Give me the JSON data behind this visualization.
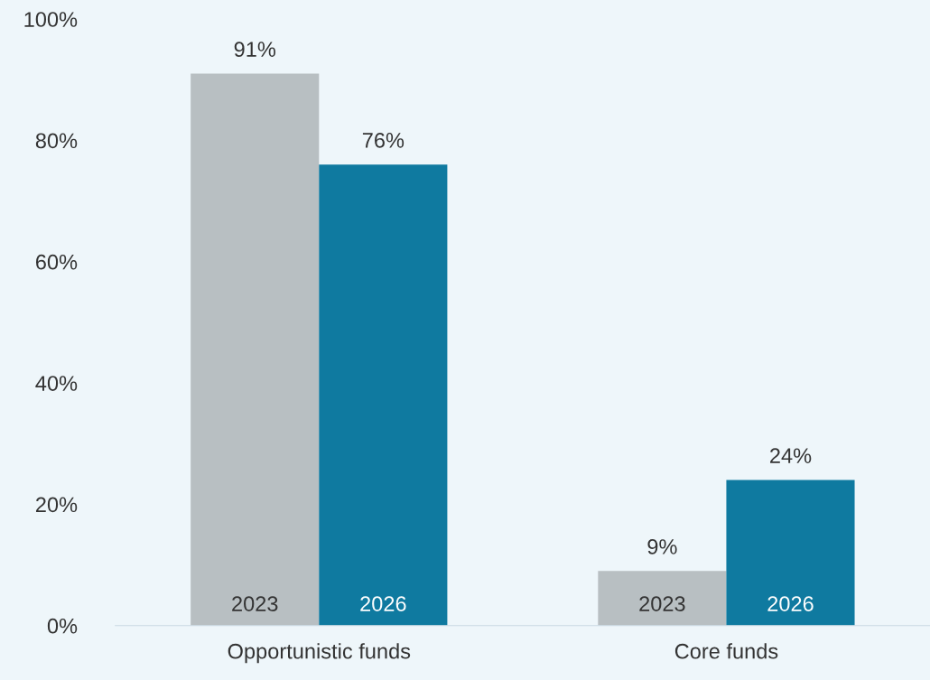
{
  "chart_data": {
    "type": "bar",
    "categories": [
      "Opportunistic funds",
      "Core funds"
    ],
    "series": [
      {
        "name": "2023",
        "color": "#b8bfc2",
        "values": [
          91,
          9
        ],
        "value_labels": [
          "91%",
          "9%"
        ]
      },
      {
        "name": "2026",
        "color": "#0f7aa0",
        "values": [
          76,
          24
        ],
        "value_labels": [
          "76%",
          "24%"
        ]
      }
    ],
    "ylim": [
      0,
      100
    ],
    "yticks": [
      {
        "value": 0,
        "label": "0%"
      },
      {
        "value": 20,
        "label": "20%"
      },
      {
        "value": 40,
        "label": "40%"
      },
      {
        "value": 60,
        "label": "60%"
      },
      {
        "value": 80,
        "label": "80%"
      },
      {
        "value": 100,
        "label": "100%"
      }
    ],
    "grid": false,
    "legend": false
  }
}
